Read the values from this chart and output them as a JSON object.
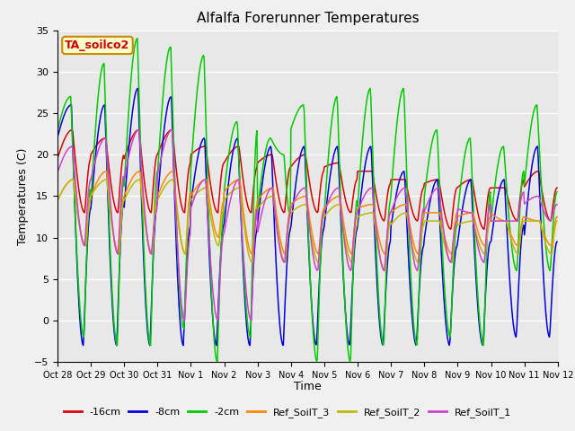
{
  "title": "Alfalfa Forerunner Temperatures",
  "xlabel": "Time",
  "ylabel": "Temperatures (C)",
  "ylim": [
    -5,
    35
  ],
  "series_labels": [
    "-16cm",
    "-8cm",
    "-2cm",
    "Ref_SoilT_3",
    "Ref_SoilT_2",
    "Ref_SoilT_1"
  ],
  "series_colors": [
    "#dd0000",
    "#0000dd",
    "#00cc00",
    "#ff8800",
    "#bbbb00",
    "#cc44cc"
  ],
  "annotation_label": "TA_soilco2",
  "annotation_color": "#cc0000",
  "annotation_bg": "#ffffcc",
  "annotation_border": "#cc8800",
  "plot_bg": "#e8e8e8",
  "fig_bg": "#f0f0f0",
  "tick_labels": [
    "Oct 28",
    "Oct 29",
    "Oct 30",
    "Oct 31",
    "Nov 1",
    "Nov 2",
    "Nov 3",
    "Nov 4",
    "Nov 5",
    "Nov 6",
    "Nov 7",
    "Nov 8",
    "Nov 9",
    "Nov 10",
    "Nov 11",
    "Nov 12"
  ],
  "num_days": 15,
  "pts_per_day": 48,
  "title_fontsize": 11,
  "axis_fontsize": 9,
  "tick_fontsize": 7,
  "legend_fontsize": 8
}
